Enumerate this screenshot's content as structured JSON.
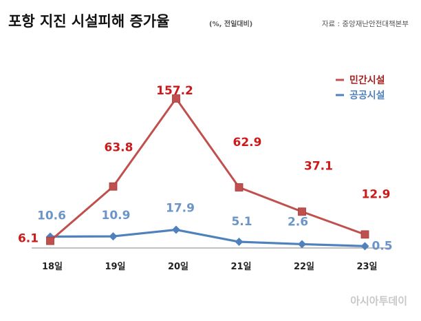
{
  "header": {
    "title": "포항 지진 시설피해 증가율",
    "subtitle": "(%, 전일대비)",
    "source": "자료 : 중앙재난안전대책본부"
  },
  "watermark": "아시아투데이",
  "chart_data": {
    "type": "line",
    "title": "포항 지진 시설피해 증가율",
    "subtitle": "(%, 전일대비)",
    "categories": [
      "18일",
      "19일",
      "20일",
      "21일",
      "22일",
      "23일"
    ],
    "series": [
      {
        "name": "민간시설",
        "color": "#c0504d",
        "label_color": "#cc1a1a",
        "marker": "square",
        "values": [
          6.1,
          63.8,
          157.2,
          62.9,
          37.1,
          12.9
        ]
      },
      {
        "name": "공공시설",
        "color": "#4f81bd",
        "label_color": "#6b95c8",
        "marker": "diamond",
        "values": [
          10.6,
          10.9,
          17.9,
          5.1,
          2.6,
          0.5
        ]
      }
    ],
    "ylim": [
      0,
      170
    ],
    "grid": false,
    "legend_position": "top-right"
  }
}
